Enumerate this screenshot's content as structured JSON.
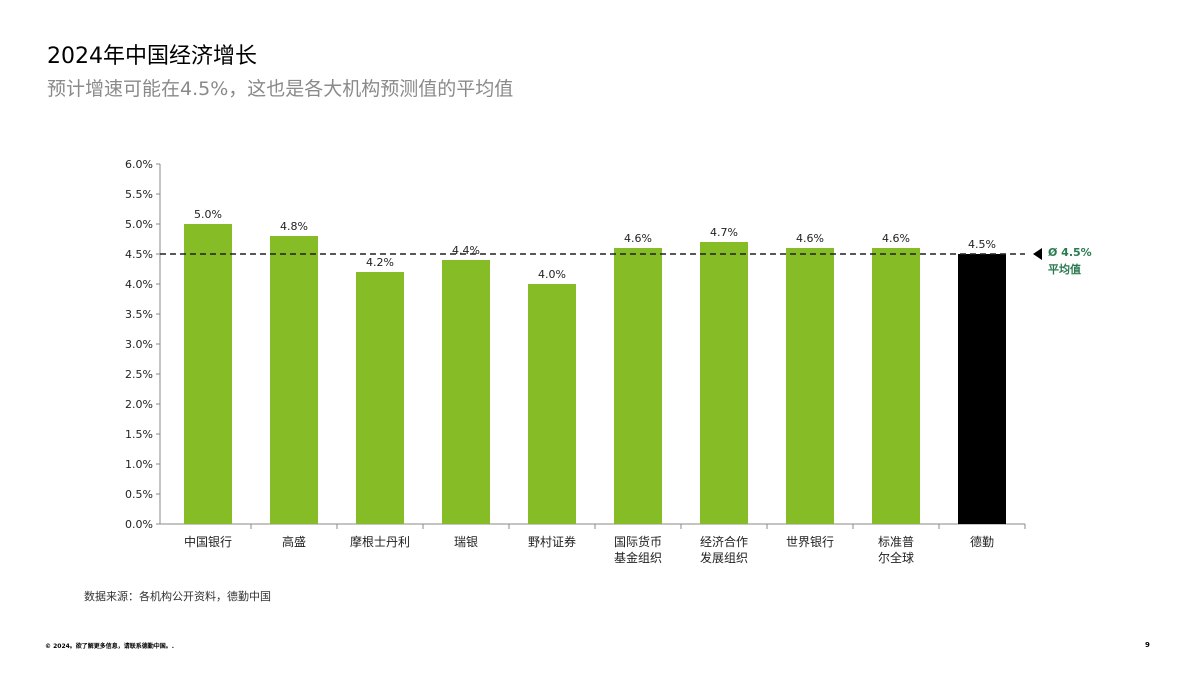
{
  "title": "2024年中国经济增长",
  "subtitle": "预计增速可能在4.5%，这也是各大机构预测值的平均值",
  "chart_data": {
    "type": "bar",
    "categories": [
      "中国银行",
      "高盛",
      "摩根士丹利",
      "瑞银",
      "野村证券",
      "国际货币\n基金组织",
      "经济合作\n发展组织",
      "世界银行",
      "标准普\n尔全球",
      "德勤"
    ],
    "values": [
      5.0,
      4.8,
      4.2,
      4.4,
      4.0,
      4.6,
      4.7,
      4.6,
      4.6,
      4.5
    ],
    "data_labels": [
      "5.0%",
      "4.8%",
      "4.2%",
      "4.4%",
      "4.0%",
      "4.6%",
      "4.7%",
      "4.6%",
      "4.6%",
      "4.5%"
    ],
    "yticks": [
      "0.0%",
      "0.5%",
      "1.0%",
      "1.5%",
      "2.0%",
      "2.5%",
      "3.0%",
      "3.5%",
      "4.0%",
      "4.5%",
      "5.0%",
      "5.5%",
      "6.0%"
    ],
    "ylim": [
      0,
      6.0
    ],
    "average": 4.5,
    "average_label": "Ø 4.5%",
    "average_caption": "平均值",
    "colors": {
      "bar": "#86BC25",
      "highlight": "#000000",
      "average": "#2A7A50"
    },
    "highlight_index": 9,
    "grid": false
  },
  "source": "数据来源：各机构公开资料，德勤中国",
  "footer": "© 2024。欲了解更多信息，请联系德勤中国。.",
  "page_number": "9"
}
